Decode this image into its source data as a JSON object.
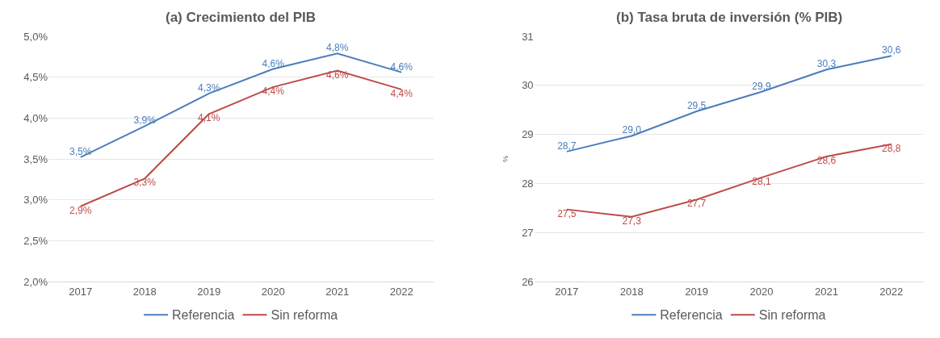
{
  "chart_data": [
    {
      "type": "line",
      "title": "(a) Crecimiento del PIB",
      "categories": [
        "2017",
        "2018",
        "2019",
        "2020",
        "2021",
        "2022"
      ],
      "series": [
        {
          "name": "Referencia",
          "color": "#4a7ebb",
          "values": [
            3.52,
            3.9,
            4.3,
            4.6,
            4.79,
            4.56
          ],
          "value_labels": [
            "3,5%",
            "3,9%",
            "4,3%",
            "4,6%",
            "4,8%",
            "4,6%"
          ]
        },
        {
          "name": "Sin reforma",
          "color": "#be4b48",
          "values": [
            2.92,
            3.26,
            4.05,
            4.38,
            4.58,
            4.35
          ],
          "value_labels": [
            "2,9%",
            "3,3%",
            "4,1%",
            "4,4%",
            "4,6%",
            "4,4%"
          ]
        }
      ],
      "ylim": [
        2.0,
        5.0
      ],
      "yticks": [
        {
          "value": 2.0,
          "label": "2,0%"
        },
        {
          "value": 2.5,
          "label": "2,5%"
        },
        {
          "value": 3.0,
          "label": "3,0%"
        },
        {
          "value": 3.5,
          "label": "3,5%"
        },
        {
          "value": 4.0,
          "label": "4,0%"
        },
        {
          "value": 4.5,
          "label": "4,5%"
        },
        {
          "value": 5.0,
          "label": "5,0%"
        }
      ],
      "grid": "y",
      "legend": "bottom",
      "marker": "none",
      "line_style": "solid"
    },
    {
      "type": "line",
      "title": "(b) Tasa bruta de inversión (% PIB)",
      "ylabel": "%",
      "categories": [
        "2017",
        "2018",
        "2019",
        "2020",
        "2021",
        "2022"
      ],
      "series": [
        {
          "name": "Referencia",
          "color": "#4a7ebb",
          "values": [
            28.65,
            28.97,
            29.47,
            29.87,
            30.32,
            30.6
          ],
          "value_labels": [
            "28,7",
            "29,0",
            "29,5",
            "29,9",
            "30,3",
            "30,6"
          ]
        },
        {
          "name": "Sin reforma",
          "color": "#be4b48",
          "values": [
            27.47,
            27.32,
            27.67,
            28.12,
            28.55,
            28.8
          ],
          "value_labels": [
            "27,5",
            "27,3",
            "27,7",
            "28,1",
            "28,6",
            "28,8"
          ]
        }
      ],
      "ylim": [
        26,
        31
      ],
      "yticks": [
        26,
        27,
        28,
        29,
        30,
        31
      ],
      "grid": "y",
      "legend": "bottom",
      "marker": "none",
      "line_style": "solid"
    }
  ]
}
